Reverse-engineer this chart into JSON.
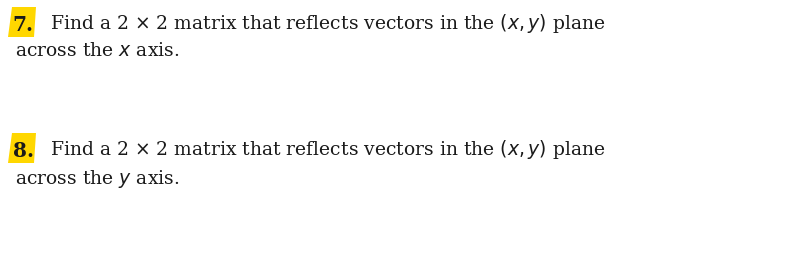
{
  "background_color": "#ffffff",
  "items": [
    {
      "number": "7.",
      "badge_color": "#FFD700",
      "text_line1": "Find a 2 $\\times$ 2 matrix that reflects vectors in the $(x, y)$ plane",
      "text_line2": "across the $x$ axis.",
      "fontsize": 13.5
    },
    {
      "number": "8.",
      "badge_color": "#FFD700",
      "text_line1": "Find a 2 $\\times$ 2 matrix that reflects vectors in the $(x, y)$ plane",
      "text_line2": "across the $y$ axis.",
      "fontsize": 13.5
    }
  ],
  "text_color": "#1a1a1a",
  "font_family": "DejaVu Serif"
}
